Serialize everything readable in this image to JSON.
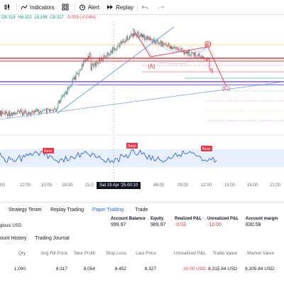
{
  "toolbar": {
    "indicators_label": "Indicators",
    "alert_label": "Alert",
    "replay_label": "Replay"
  },
  "ohlc": {
    "o": "O8.318",
    "h": "H8.323",
    "l": "L8.196",
    "c": "C8.317",
    "change": "-0.003 (-0.04%)"
  },
  "chart": {
    "labels": {
      "a": "(A)",
      "b": "(B)",
      "c": "(C)"
    },
    "rsi_badges": [
      "Bear",
      "Bear",
      "Bear"
    ],
    "colors": {
      "up": "#089981",
      "down": "#f23645",
      "rsi": "#2962ff"
    }
  },
  "time_axis": [
    "00",
    "12:00",
    "15:00",
    "18:00",
    "21:0",
    "06:00",
    "09:00",
    "12:00",
    "15:00",
    "18:00",
    "21:00"
  ],
  "crosshair": "Sat 19 Apr '25    00:10",
  "panel": {
    "tabs": [
      "Strategy Tester",
      "Replay Trading",
      "Paper Trading",
      "Trade"
    ],
    "symbol_suffix": "glouis USD",
    "account": {
      "balance_label": "Account Balance",
      "balance": "999.97",
      "equity_label": "Equity",
      "equity": "989.97",
      "realized_label": "Realized P&L",
      "realized": "-0.03",
      "unrealized_label": "Unrealized P&L",
      "unrealized": "-10.00",
      "margin_label": "Account margin",
      "margin": "830.58"
    },
    "subtabs": [
      "ount History",
      "Trading Journal"
    ],
    "table": {
      "headers": [
        "Qty",
        "Avg Fill Price",
        "Take Profit",
        "Stop Loss",
        "Last Price",
        "Unrealized P&L",
        "Trade Value",
        "Market Value"
      ],
      "row": [
        "1,000",
        "8.317",
        "8.054",
        "8.452",
        "8.327",
        "-10.00 USD",
        "8,315.84 USD",
        "8,305.84 USD"
      ]
    }
  }
}
